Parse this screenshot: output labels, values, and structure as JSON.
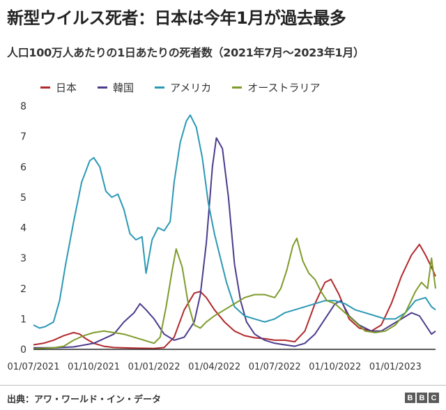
{
  "header": {
    "title": "新型ウイルス死者：日本は今年1月が過去最多",
    "subtitle": "人口100万人あたりの1日あたりの死者数（2021年7月〜2023年1月）"
  },
  "footer": {
    "source": "出典：アワ・ワールド・イン・データ",
    "logo_letters": [
      "B",
      "B",
      "C"
    ]
  },
  "chart_data": {
    "type": "line",
    "title": "新型ウイルス死者：日本は今年1月が過去最多",
    "subtitle": "人口100万人あたりの1日あたりの死者数（2021年7月〜2023年1月）",
    "xlabel": "",
    "ylabel": "",
    "ylim": [
      0,
      8
    ],
    "yticks": [
      "0",
      "1",
      "2",
      "3",
      "4",
      "5",
      "6",
      "7",
      "8"
    ],
    "xticks": [
      "01/07/2021",
      "01/10/2021",
      "01/01/2022",
      "01/04/2022",
      "01/07/2022",
      "01/10/2022",
      "01/01/2023"
    ],
    "grid": false,
    "legend_position": "top",
    "x_unit": "month index (0 = 01/07/2021)",
    "series": [
      {
        "name": "日本",
        "color": "#b1282a",
        "points": [
          [
            0,
            0.15
          ],
          [
            0.5,
            0.2
          ],
          [
            1,
            0.3
          ],
          [
            1.5,
            0.45
          ],
          [
            2,
            0.55
          ],
          [
            2.3,
            0.5
          ],
          [
            2.6,
            0.35
          ],
          [
            3,
            0.2
          ],
          [
            3.5,
            0.1
          ],
          [
            4,
            0.06
          ],
          [
            5,
            0.04
          ],
          [
            6,
            0.03
          ],
          [
            6.5,
            0.06
          ],
          [
            7,
            0.4
          ],
          [
            7.5,
            1.3
          ],
          [
            8,
            1.85
          ],
          [
            8.3,
            1.9
          ],
          [
            8.6,
            1.7
          ],
          [
            9,
            1.3
          ],
          [
            9.5,
            0.9
          ],
          [
            10,
            0.6
          ],
          [
            10.5,
            0.45
          ],
          [
            11,
            0.38
          ],
          [
            11.5,
            0.35
          ],
          [
            12,
            0.3
          ],
          [
            12.5,
            0.3
          ],
          [
            13,
            0.25
          ],
          [
            13.5,
            0.6
          ],
          [
            14,
            1.5
          ],
          [
            14.5,
            2.2
          ],
          [
            14.8,
            2.3
          ],
          [
            15.2,
            1.8
          ],
          [
            15.7,
            1.0
          ],
          [
            16.2,
            0.7
          ],
          [
            16.8,
            0.6
          ],
          [
            17.3,
            0.8
          ],
          [
            17.8,
            1.5
          ],
          [
            18.3,
            2.4
          ],
          [
            18.8,
            3.1
          ],
          [
            19.2,
            3.45
          ],
          [
            19.5,
            3.1
          ],
          [
            19.8,
            2.7
          ],
          [
            20,
            2.4
          ]
        ]
      },
      {
        "name": "韓国",
        "color": "#4b3a8c",
        "points": [
          [
            0,
            0.05
          ],
          [
            1,
            0.05
          ],
          [
            2,
            0.08
          ],
          [
            3,
            0.2
          ],
          [
            4,
            0.5
          ],
          [
            4.5,
            0.9
          ],
          [
            5,
            1.2
          ],
          [
            5.3,
            1.5
          ],
          [
            5.6,
            1.3
          ],
          [
            6,
            1.0
          ],
          [
            6.5,
            0.5
          ],
          [
            7,
            0.3
          ],
          [
            7.5,
            0.4
          ],
          [
            8,
            0.9
          ],
          [
            8.3,
            1.8
          ],
          [
            8.6,
            3.5
          ],
          [
            8.9,
            6.0
          ],
          [
            9.1,
            6.95
          ],
          [
            9.4,
            6.6
          ],
          [
            9.7,
            5.0
          ],
          [
            10,
            2.8
          ],
          [
            10.3,
            1.6
          ],
          [
            10.6,
            0.9
          ],
          [
            11,
            0.5
          ],
          [
            11.5,
            0.3
          ],
          [
            12,
            0.2
          ],
          [
            12.5,
            0.15
          ],
          [
            13,
            0.1
          ],
          [
            13.5,
            0.2
          ],
          [
            14,
            0.5
          ],
          [
            14.5,
            1.0
          ],
          [
            15,
            1.5
          ],
          [
            15.3,
            1.6
          ],
          [
            15.7,
            1.1
          ],
          [
            16.2,
            0.8
          ],
          [
            16.8,
            0.6
          ],
          [
            17.3,
            0.6
          ],
          [
            17.8,
            0.8
          ],
          [
            18.3,
            1.0
          ],
          [
            18.8,
            1.2
          ],
          [
            19.2,
            1.1
          ],
          [
            19.6,
            0.7
          ],
          [
            19.8,
            0.5
          ],
          [
            20,
            0.6
          ]
        ]
      },
      {
        "name": "アメリカ",
        "color": "#2a98b3",
        "points": [
          [
            0,
            0.8
          ],
          [
            0.3,
            0.7
          ],
          [
            0.6,
            0.75
          ],
          [
            1,
            0.9
          ],
          [
            1.3,
            1.6
          ],
          [
            1.6,
            2.8
          ],
          [
            2,
            4.2
          ],
          [
            2.4,
            5.5
          ],
          [
            2.8,
            6.2
          ],
          [
            3,
            6.3
          ],
          [
            3.3,
            6.0
          ],
          [
            3.6,
            5.2
          ],
          [
            3.9,
            5.0
          ],
          [
            4.2,
            5.1
          ],
          [
            4.5,
            4.6
          ],
          [
            4.8,
            3.8
          ],
          [
            5.1,
            3.6
          ],
          [
            5.4,
            3.7
          ],
          [
            5.6,
            2.5
          ],
          [
            5.9,
            3.6
          ],
          [
            6.2,
            4.0
          ],
          [
            6.5,
            3.9
          ],
          [
            6.8,
            4.2
          ],
          [
            7,
            5.5
          ],
          [
            7.3,
            6.8
          ],
          [
            7.6,
            7.5
          ],
          [
            7.8,
            7.7
          ],
          [
            8.1,
            7.3
          ],
          [
            8.4,
            6.3
          ],
          [
            8.7,
            4.8
          ],
          [
            9,
            3.8
          ],
          [
            9.3,
            3.0
          ],
          [
            9.6,
            2.2
          ],
          [
            10,
            1.4
          ],
          [
            10.5,
            1.1
          ],
          [
            11,
            1.0
          ],
          [
            11.5,
            0.9
          ],
          [
            12,
            1.0
          ],
          [
            12.5,
            1.2
          ],
          [
            13,
            1.3
          ],
          [
            13.5,
            1.4
          ],
          [
            14,
            1.5
          ],
          [
            14.5,
            1.6
          ],
          [
            15,
            1.6
          ],
          [
            15.5,
            1.5
          ],
          [
            16,
            1.3
          ],
          [
            16.5,
            1.2
          ],
          [
            17,
            1.1
          ],
          [
            17.5,
            1.0
          ],
          [
            18,
            1.0
          ],
          [
            18.5,
            1.2
          ],
          [
            19,
            1.6
          ],
          [
            19.5,
            1.7
          ],
          [
            19.8,
            1.4
          ],
          [
            20,
            1.3
          ]
        ]
      },
      {
        "name": "オーストラリア",
        "color": "#7d9b2a",
        "points": [
          [
            0,
            0.02
          ],
          [
            1,
            0.05
          ],
          [
            1.5,
            0.1
          ],
          [
            2,
            0.3
          ],
          [
            2.5,
            0.45
          ],
          [
            3,
            0.55
          ],
          [
            3.5,
            0.6
          ],
          [
            4,
            0.55
          ],
          [
            4.5,
            0.5
          ],
          [
            5,
            0.4
          ],
          [
            5.5,
            0.3
          ],
          [
            6,
            0.2
          ],
          [
            6.3,
            0.4
          ],
          [
            6.6,
            1.4
          ],
          [
            6.9,
            2.6
          ],
          [
            7.1,
            3.3
          ],
          [
            7.4,
            2.7
          ],
          [
            7.7,
            1.5
          ],
          [
            8,
            0.8
          ],
          [
            8.3,
            0.7
          ],
          [
            8.6,
            0.9
          ],
          [
            9,
            1.1
          ],
          [
            9.5,
            1.3
          ],
          [
            10,
            1.5
          ],
          [
            10.5,
            1.7
          ],
          [
            11,
            1.8
          ],
          [
            11.5,
            1.8
          ],
          [
            12,
            1.7
          ],
          [
            12.3,
            2.0
          ],
          [
            12.6,
            2.6
          ],
          [
            12.9,
            3.4
          ],
          [
            13.1,
            3.65
          ],
          [
            13.4,
            2.9
          ],
          [
            13.7,
            2.5
          ],
          [
            14,
            2.3
          ],
          [
            14.3,
            1.9
          ],
          [
            14.6,
            1.6
          ],
          [
            15,
            1.5
          ],
          [
            15.5,
            1.2
          ],
          [
            16,
            0.9
          ],
          [
            16.5,
            0.6
          ],
          [
            17,
            0.55
          ],
          [
            17.5,
            0.6
          ],
          [
            18,
            0.8
          ],
          [
            18.5,
            1.2
          ],
          [
            19,
            1.9
          ],
          [
            19.3,
            2.2
          ],
          [
            19.6,
            2.0
          ],
          [
            19.8,
            3.0
          ],
          [
            20,
            2.0
          ]
        ]
      }
    ]
  }
}
